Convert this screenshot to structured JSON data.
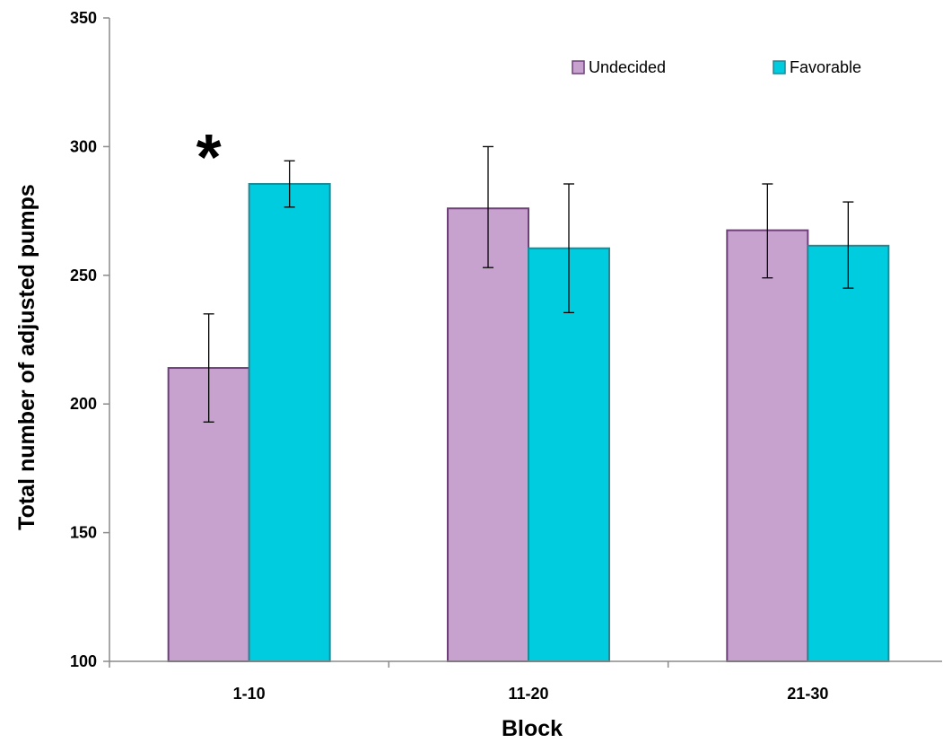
{
  "chart_data": {
    "type": "bar",
    "title": "",
    "xlabel": "Block",
    "ylabel": "Total number of adjusted pumps",
    "categories": [
      "1-10",
      "11-20",
      "21-30"
    ],
    "ylim": [
      100,
      350
    ],
    "yticks": [
      100,
      150,
      200,
      250,
      300,
      350
    ],
    "grid": false,
    "legend_position": "top-right",
    "series": [
      {
        "name": "Undecided",
        "color": "#C8A2CF",
        "edge_color": "#6F3F7A",
        "values": [
          214,
          276,
          267.5
        ],
        "error_low": [
          193,
          253,
          249
        ],
        "error_high": [
          235,
          300,
          285.5
        ]
      },
      {
        "name": "Favorable",
        "color": "#00CCE0",
        "edge_color": "#1F8A96",
        "values": [
          285.5,
          260.5,
          261.5
        ],
        "error_low": [
          276.5,
          235.5,
          245
        ],
        "error_high": [
          294.5,
          285.5,
          278.5
        ]
      }
    ],
    "annotations": [
      {
        "text": "*",
        "category_index": 0
      }
    ]
  }
}
